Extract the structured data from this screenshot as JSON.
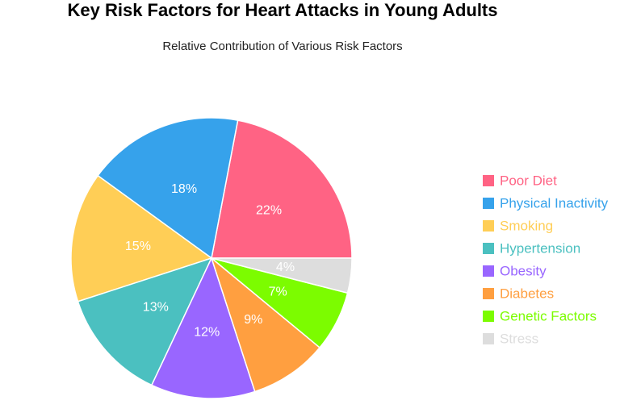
{
  "chart_data": {
    "type": "pie",
    "title": "Key Risk Factors for Heart Attacks in Young Adults",
    "subtitle": "Relative Contribution of Various Risk Factors",
    "legend_position": "right",
    "categories": [
      "Poor Diet",
      "Physical Inactivity",
      "Smoking",
      "Hypertension",
      "Obesity",
      "Diabetes",
      "Genetic Factors",
      "Stress"
    ],
    "values": [
      22,
      18,
      15,
      13,
      12,
      9,
      7,
      4
    ],
    "labels": [
      "22%",
      "18%",
      "15%",
      "13%",
      "12%",
      "9%",
      "7%",
      "4%"
    ],
    "colors": [
      "#ff6384",
      "#36a2eb",
      "#ffce56",
      "#4bc0c0",
      "#9966ff",
      "#ff9f40",
      "#7cfc00",
      "#dddddd"
    ]
  }
}
